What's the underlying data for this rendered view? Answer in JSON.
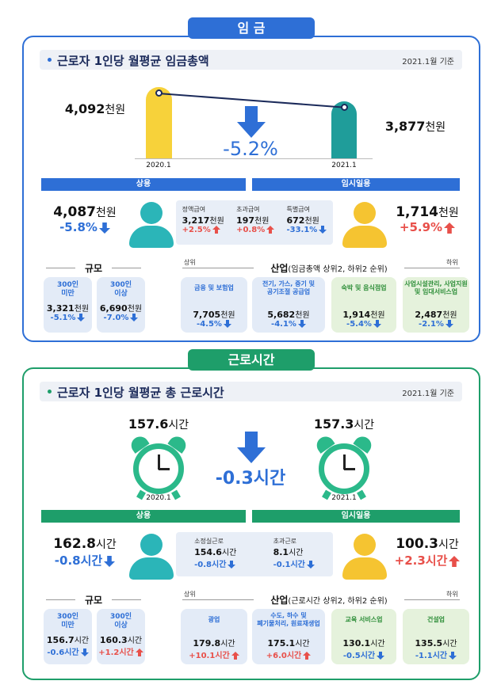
{
  "wage": {
    "tab": "임 금",
    "title": "근로자 1인당 월평균 임금총액",
    "basis": "2021.1월 기준",
    "prev": {
      "value": "4,092",
      "unit": "천원",
      "date": "2020.1"
    },
    "curr": {
      "value": "3,877",
      "unit": "천원",
      "date": "2021.1"
    },
    "change": "-5.2%",
    "regular": {
      "header": "상용",
      "value": "4,087",
      "unit": "천원",
      "change": "-5.8%"
    },
    "breakdown": [
      {
        "label": "정액급여",
        "value": "3,217",
        "unit": "천원",
        "change": "+2.5%"
      },
      {
        "label": "초과급여",
        "value": "197",
        "unit": "천원",
        "change": "+0.8%"
      },
      {
        "label": "특별급여",
        "value": "672",
        "unit": "천원",
        "change": "-33.1%"
      }
    ],
    "temp": {
      "header": "임시일용",
      "value": "1,714",
      "unit": "천원",
      "change": "+5.9%"
    },
    "size": {
      "title": "규모",
      "items": [
        {
          "label": "300인\n미만",
          "value": "3,321",
          "unit": "천원",
          "change": "-5.1%"
        },
        {
          "label": "300인\n이상",
          "value": "6,690",
          "unit": "천원",
          "change": "-7.0%"
        }
      ]
    },
    "industry": {
      "high": "상위",
      "title": "산업",
      "note": "(임금총액 상위2, 하위2 순위)",
      "low": "하위",
      "items": [
        {
          "label": "금융 및 보험업",
          "value": "7,705",
          "unit": "천원",
          "change": "-4.5%"
        },
        {
          "label": "전기, 가스, 증기 및\n공기조절 공급업",
          "value": "5,682",
          "unit": "천원",
          "change": "-4.1%"
        },
        {
          "label": "숙박 및 음식점업",
          "value": "1,914",
          "unit": "천원",
          "change": "-5.4%"
        },
        {
          "label": "사업시설관리, 사업지원\n및 임대서비스업",
          "value": "2,487",
          "unit": "천원",
          "change": "-2.1%"
        }
      ]
    }
  },
  "hours": {
    "tab": "근로시간",
    "title": "근로자 1인당 월평균 총 근로시간",
    "basis": "2021.1월 기준",
    "prev": {
      "value": "157.6",
      "unit": "시간",
      "date": "2020.1"
    },
    "curr": {
      "value": "157.3",
      "unit": "시간",
      "date": "2021.1"
    },
    "change": "-0.3시간",
    "regular": {
      "header": "상용",
      "value": "162.8",
      "unit": "시간",
      "change": "-0.8시간"
    },
    "breakdown": [
      {
        "label": "소정실근로",
        "value": "154.6",
        "unit": "시간",
        "change": "-0.8시간"
      },
      {
        "label": "초과근로",
        "value": "8.1",
        "unit": "시간",
        "change": "-0.1시간"
      }
    ],
    "temp": {
      "header": "임시일용",
      "value": "100.3",
      "unit": "시간",
      "change": "+2.3시간"
    },
    "size": {
      "title": "규모",
      "items": [
        {
          "label": "300인\n미만",
          "value": "156.7",
          "unit": "시간",
          "change": "-0.6시간"
        },
        {
          "label": "300인\n이상",
          "value": "160.3",
          "unit": "시간",
          "change": "+1.2시간"
        }
      ]
    },
    "industry": {
      "high": "상위",
      "title": "산업",
      "note": "(근로시간 상위2, 하위2 순위)",
      "low": "하위",
      "items": [
        {
          "label": "광업",
          "value": "179.8",
          "unit": "시간",
          "change": "+10.1시간"
        },
        {
          "label": "수도, 하수 및\n폐기물처리, 원료재생업",
          "value": "175.1",
          "unit": "시간",
          "change": "+6.0시간"
        },
        {
          "label": "교육 서비스업",
          "value": "130.1",
          "unit": "시간",
          "change": "-0.5시간"
        },
        {
          "label": "건설업",
          "value": "135.5",
          "unit": "시간",
          "change": "-1.1시간"
        }
      ]
    }
  }
}
